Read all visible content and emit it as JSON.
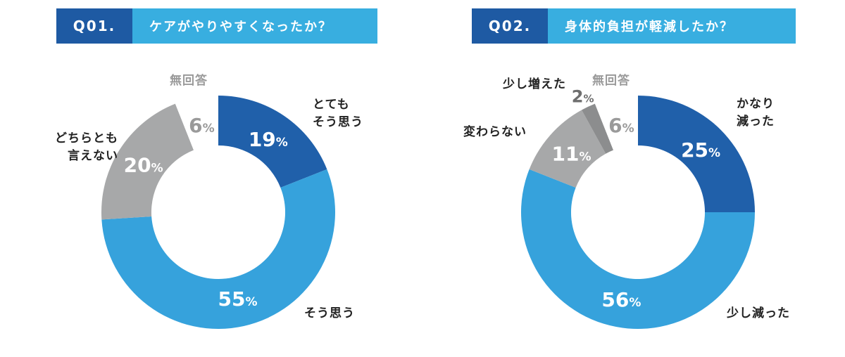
{
  "charts": [
    {
      "qnum": "Q01.",
      "question": "ケアがやりやすくなったか？"
    },
    {
      "qnum": "Q02.",
      "question": "身体的負担が軽減したか？"
    }
  ],
  "chart_data": [
    {
      "type": "pie",
      "title": "ケアがやりやすくなったか？",
      "categories": [
        "とても\nそう思う",
        "そう思う",
        "どちらとも\n言えない",
        "無回答"
      ],
      "values": [
        19,
        55,
        20,
        6
      ],
      "labels": [
        "19%",
        "55%",
        "20%",
        "6%"
      ],
      "colors": [
        "#2060aa",
        "#36a2dc",
        "#a7a8a9",
        "#ffffff"
      ]
    },
    {
      "type": "pie",
      "title": "身体的負担が軽減したか？",
      "categories": [
        "かなり\n減った",
        "少し減った",
        "変わらない",
        "少し増えた",
        "無回答"
      ],
      "values": [
        25,
        56,
        11,
        2,
        6
      ],
      "labels": [
        "25%",
        "56%",
        "11%",
        "2%",
        "6%"
      ],
      "colors": [
        "#2060aa",
        "#36a2dc",
        "#a7a8a9",
        "#8c8d8e",
        "#ffffff"
      ]
    }
  ]
}
